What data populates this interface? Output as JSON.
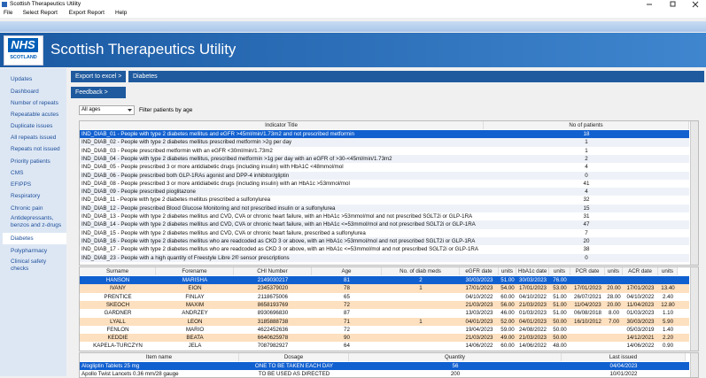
{
  "window": {
    "title": "Scottish Therapeutics Utility"
  },
  "menu": [
    "File",
    "Select Report",
    "Export Report",
    "Help"
  ],
  "header": {
    "logo_top": "NHS",
    "logo_bottom": "SCOTLAND",
    "title": "Scottish Therapeutics Utility"
  },
  "sidebar": {
    "items": [
      "Updates",
      "Dashboard",
      "Number of repeats",
      "Repeatable acutes",
      "Duplicate issues",
      "All repeats issued",
      "Repeats not issued",
      "Priority patients",
      "CMS",
      "EFIPPS",
      "Respiratory",
      "Chronic pain",
      "Antidepressants, benzos and z-drugs",
      "Diabetes",
      "Polypharmacy",
      "Clinical safety checks"
    ]
  },
  "toolbar": {
    "export": "Export to excel >",
    "active": "Diabetes",
    "feedback": "Feedback >"
  },
  "filter": {
    "value": "All ages",
    "label": "Filter patients by age"
  },
  "indicator_table": {
    "columns": [
      "Indicator Title",
      "No of patients"
    ],
    "selected_row": 0,
    "rows": [
      [
        "IND_DIAB_01 - People with type 2 diabetes mellitus and eGFR >45ml/min/1.73m2 and not prescribed metformin",
        18
      ],
      [
        "IND_DIAB_02 - People with type 2 diabetes mellitus prescribed metformin >2g per day",
        1
      ],
      [
        "IND_DIAB_03 - People prescribed metformin with an eGFR <30ml/min/1.73m2",
        1
      ],
      [
        "IND_DIAB_04 - People with type 2 diabetes mellitus, prescribed metformin >1g per day with an eGFR of >30-<45ml/min/1.73m2",
        2
      ],
      [
        "IND_DIAB_05 - People prescribed 3 or more antidiabetic drugs (including insulin) with HbA1C <48mmol/mol",
        4
      ],
      [
        "IND_DIAB_06 - People prescribed both GLP-1RAs agonist and DPP-4 inhibitor/gliptin",
        0
      ],
      [
        "IND_DIAB_08 - People prescribed 3 or more antidiabetic drugs (including insulin) with an HbA1c >53mmol/mol",
        41
      ],
      [
        "IND_DIAB_09 - People prescribed pioglitazone",
        4
      ],
      [
        "IND_DIAB_11 - People with type 2 diabetes mellitus prescribed a sulfonylurea",
        32
      ],
      [
        "IND_DIAB_12 - People prescribed Blood Glucose Monitoring and not prescribed insulin or a sulfonylurea",
        15
      ],
      [
        "IND_DIAB_13 - People with type 2 diabetes mellitus and CVD, CVA or chronic heart failure, with an HbA1c >53mmol/mol and not prescribed SGLT2i or GLP-1RA",
        31
      ],
      [
        "IND_DIAB_14 - People with type 2 diabetes mellitus and CVD, CVA or chronic heart failure, with an HbA1c <=53mmol/mol and not prescribed SGLT2i or GLP-1RA",
        47
      ],
      [
        "IND_DIAB_15 - People with type 2 diabetes mellitus and CVD, CVA or chronic heart failure, prescribed a sulfonylurea",
        7
      ],
      [
        "IND_DIAB_16 - People with type 2 diabetes mellitus who are readcoded as CKD 3 or above, with an HbA1c >53mmol/mol and not prescribed SGLT2i or GLP-1RA",
        20
      ],
      [
        "IND_DIAB_17 - People with type 2 diabetes mellitus who are readcoded as CKD 3 or above, with an HbA1c <=53mmol/mol and not prescribed SGLT2i or GLP-1RA",
        38
      ],
      [
        "IND_DIAB_23 - People with a high quantity of Freestyle Libre 2® sensor prescriptions",
        0
      ]
    ]
  },
  "patient_table": {
    "columns": [
      "Surname",
      "Forename",
      "CHI Number",
      "Age",
      "No. of diab meds",
      "eGFR date",
      "units",
      "HbA1c date",
      "units",
      "PCR date",
      "units",
      "ACR date",
      "units"
    ],
    "selected_row": 0,
    "rows": [
      [
        "HANSON",
        "MARISHA",
        "2149030217",
        81,
        2,
        "30/03/2023",
        "51.00",
        "30/03/2023",
        "76.00",
        null,
        null,
        null,
        null
      ],
      [
        "IVANY",
        "EION",
        "2345379020",
        78,
        1,
        "17/01/2023",
        "54.00",
        "17/01/2023",
        "53.00",
        "17/01/2023",
        "20.00",
        "17/01/2023",
        "13.40"
      ],
      [
        "PRENTICE",
        "FINLAY",
        "2118675006",
        65,
        null,
        "04/10/2022",
        "60.00",
        "04/10/2022",
        "51.00",
        "26/07/2021",
        "28.00",
        "04/10/2022",
        "2.40"
      ],
      [
        "SKEOCH",
        "MAXIM",
        "8658193769",
        72,
        null,
        "21/03/2023",
        "56.00",
        "21/03/2023",
        "51.00",
        "11/04/2023",
        "20.00",
        "11/04/2023",
        "12.80"
      ],
      [
        "GARDNER",
        "ANDRZEY",
        "8930696830",
        87,
        null,
        "13/03/2023",
        "46.00",
        "01/03/2023",
        "51.00",
        "06/08/2018",
        "8.00",
        "01/03/2023",
        "1.10"
      ],
      [
        "LYALL",
        "LEON",
        "3185888738",
        71,
        1,
        "04/01/2023",
        "52.00",
        "04/01/2023",
        "50.00",
        "16/10/2012",
        "7.00",
        "30/03/2023",
        "5.90"
      ],
      [
        "FENLON",
        "MARIO",
        "4622452636",
        72,
        null,
        "19/04/2023",
        "59.00",
        "24/08/2022",
        "50.00",
        null,
        null,
        "05/03/2019",
        "1.40"
      ],
      [
        "KEDDIE",
        "BEATA",
        "6640625978",
        90,
        null,
        "21/03/2023",
        "49.00",
        "21/03/2023",
        "50.00",
        null,
        null,
        "14/12/2021",
        "2.20"
      ],
      [
        "KAPELA-TURCZYN",
        "JELA",
        "7087982927",
        64,
        null,
        "14/06/2022",
        "60.00",
        "14/06/2022",
        "48.00",
        null,
        null,
        "14/06/2022",
        "0.90"
      ]
    ]
  },
  "medication_table": {
    "columns": [
      "Item name",
      "Dosage",
      "Quantity",
      "Last issued"
    ],
    "selected_row": 0,
    "rows": [
      [
        "Alogliptin Tablets 25 mg",
        "ONE TO BE TAKEN EACH DAY",
        56,
        "04/04/2023"
      ],
      [
        "Apollo Twist Lancets 0.36 mm/28 gauge",
        "TO BE USED AS DIRECTED",
        200,
        "10/01/2022"
      ]
    ]
  }
}
